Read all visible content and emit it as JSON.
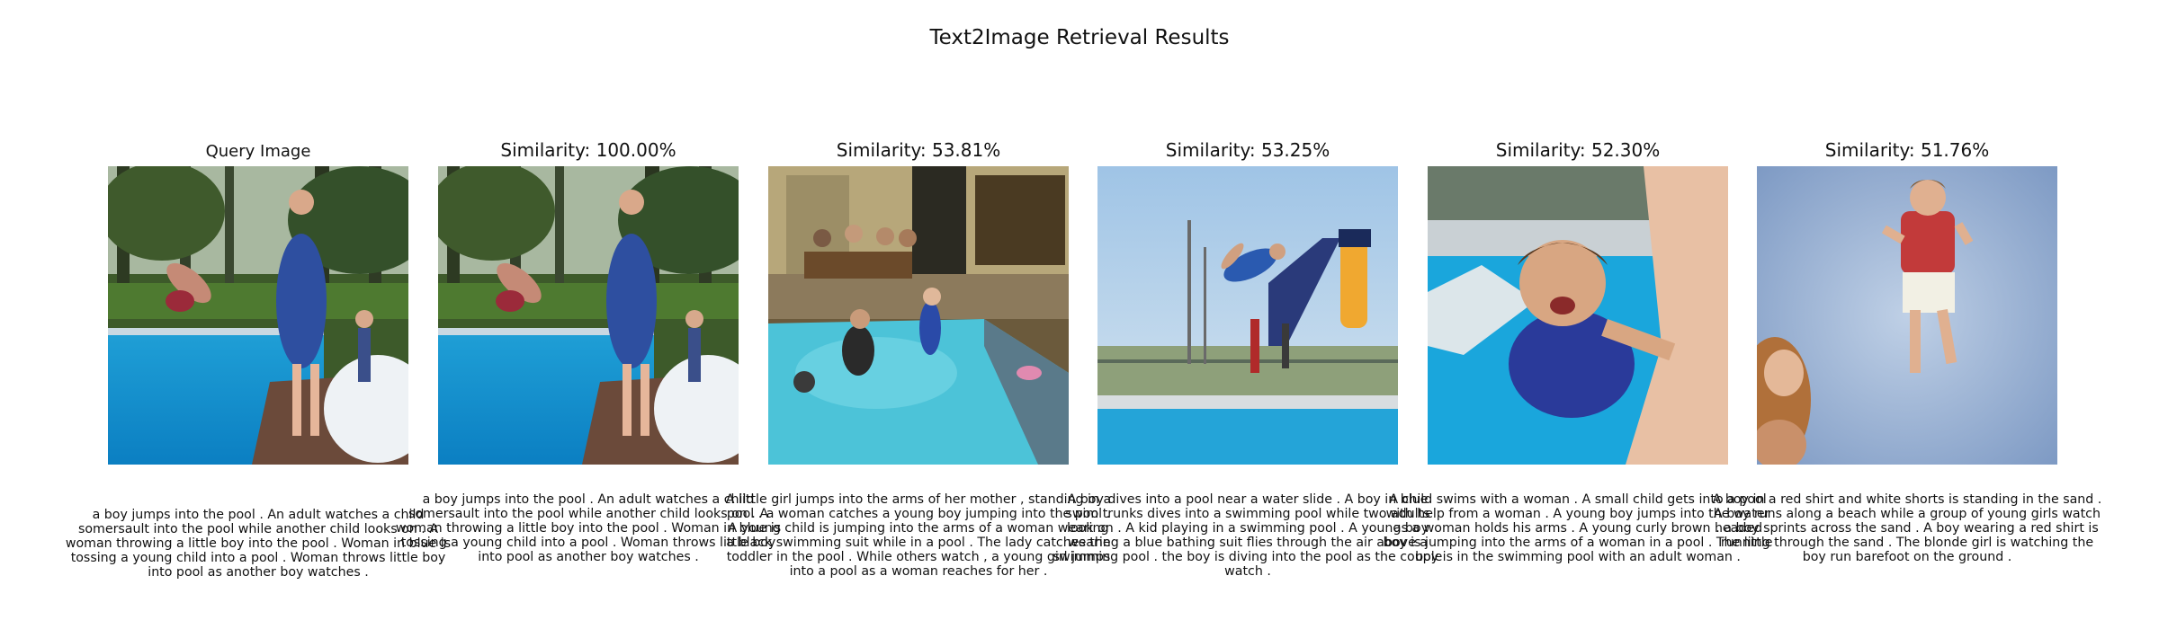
{
  "title": "Text2Image Retrieval Results",
  "query": {
    "label": "Query Image",
    "caption": "a boy jumps into the pool . An adult watches a child somersault into the pool while another child looks on . A woman throwing a little boy into the pool . Woman in blue is tossing a young child into a pool . Woman throws little boy into pool as another boy watches ."
  },
  "results": [
    {
      "label": "Similarity: 100.00%",
      "caption": "a boy jumps into the pool . An adult watches a child somersault into the pool while another child looks on . A woman throwing a little boy into the pool . Woman in blue is tossing a young child into a pool . Woman throws little boy into pool as another boy watches ."
    },
    {
      "label": "Similarity: 53.81%",
      "caption": "A little girl jumps into the arms of her mother , standing in a pool . a woman catches a young boy jumping into the pool . A young child is jumping into the arms of a woman wearing a black swimming suit while in a pool . The lady catches the toddler in the pool . While others watch , a young girl jumps into a pool as a woman reaches for her ."
    },
    {
      "label": "Similarity: 53.25%",
      "caption": "A boy dives into a pool near a water slide . A boy in blue swim trunks dives into a swimming pool while two adults look on . A kid playing in a swimming pool . A young boy wearing a blue bathing suit flies through the air above a swimming pool . the boy is diving into the pool as the couple watch ."
    },
    {
      "label": "Similarity: 52.30%",
      "caption": "A child swims with a woman . A small child gets into a pool with help from a woman . A young boy jumps into the water as a woman holds his arms . A young curly brown headed boy is jumping into the arms of a woman in a pool . The little boy is in the swimming pool with an adult woman ."
    },
    {
      "label": "Similarity: 51.76%",
      "caption": "A boy in a red shirt and white shorts is standing in the sand . A boy runs along a beach while a group of young girls watch . a boy sprints across the sand . A boy wearing a red shirt is running through the sand . The blonde girl is watching the boy run barefoot on the ground ."
    }
  ]
}
